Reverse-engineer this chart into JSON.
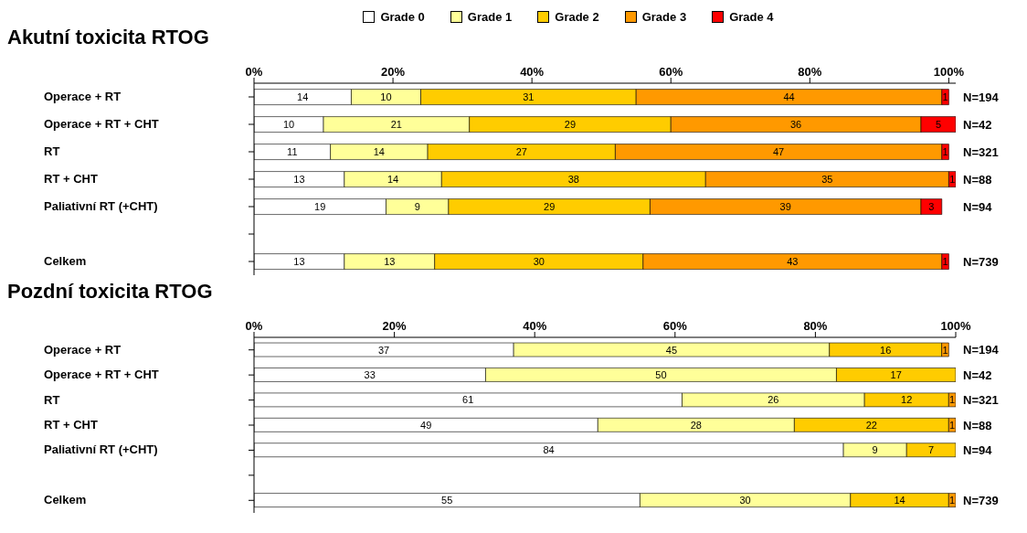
{
  "chart_data": [
    {
      "type": "bar",
      "title": "Akutní toxicita RTOG",
      "orientation": "horizontal",
      "stacked": true,
      "data_labels": true,
      "legend": "top",
      "categories": [
        "Operace + RT",
        "Operace + RT + CHT",
        "RT",
        "RT + CHT",
        "Paliativní RT (+CHT)",
        null,
        "Celkem"
      ],
      "series": [
        {
          "name": "Grade 0",
          "color": "#ffffff",
          "values": [
            14,
            10,
            11,
            13,
            19,
            null,
            13
          ]
        },
        {
          "name": "Grade 1",
          "color": "#ffff99",
          "values": [
            10,
            21,
            14,
            14,
            9,
            null,
            13
          ]
        },
        {
          "name": "Grade 2",
          "color": "#ffcc00",
          "values": [
            31,
            29,
            27,
            38,
            29,
            null,
            30
          ]
        },
        {
          "name": "Grade 3",
          "color": "#ff9900",
          "values": [
            44,
            36,
            47,
            35,
            39,
            null,
            43
          ]
        },
        {
          "name": "Grade 4",
          "color": "#ff0000",
          "values": [
            1,
            5,
            1,
            1,
            3,
            null,
            1
          ]
        }
      ],
      "xlim": [
        0,
        101
      ],
      "xticks": [
        {
          "value": 0,
          "label": "0%"
        },
        {
          "value": 20,
          "label": "20%"
        },
        {
          "value": 40,
          "label": "40%"
        },
        {
          "value": 60,
          "label": "60%"
        },
        {
          "value": 80,
          "label": "80%"
        },
        {
          "value": 100,
          "label": "100%"
        }
      ],
      "annotations": [
        "N=194",
        "N=42",
        "N=321",
        "N=88",
        "N=94",
        "N=739"
      ]
    },
    {
      "type": "bar",
      "title": "Pozdní toxicita RTOG",
      "orientation": "horizontal",
      "stacked": true,
      "data_labels": true,
      "categories": [
        "Operace + RT",
        "Operace + RT + CHT",
        "RT",
        "RT + CHT",
        "Paliativní RT (+CHT)",
        null,
        "Celkem"
      ],
      "series": [
        {
          "color": "#ffffff",
          "values": [
            37,
            33,
            61,
            49,
            84,
            null,
            55
          ]
        },
        {
          "color": "#ffff99",
          "values": [
            45,
            50,
            26,
            28,
            9,
            null,
            30
          ]
        },
        {
          "color": "#ffcc00",
          "values": [
            16,
            17,
            12,
            22,
            7,
            null,
            14
          ]
        },
        {
          "color": "#ff9900",
          "values": [
            1,
            null,
            1,
            1,
            null,
            null,
            1
          ]
        }
      ],
      "xlim": [
        0,
        100
      ],
      "xticks": [
        {
          "value": 0,
          "label": "0%"
        },
        {
          "value": 20,
          "label": "20%"
        },
        {
          "value": 40,
          "label": "40%"
        },
        {
          "value": 60,
          "label": "60%"
        },
        {
          "value": 80,
          "label": "80%"
        },
        {
          "value": 100,
          "label": "100%"
        }
      ],
      "annotations": [
        "N=194",
        "N=42",
        "N=321",
        "N=88",
        "N=94",
        "N=739"
      ]
    }
  ]
}
